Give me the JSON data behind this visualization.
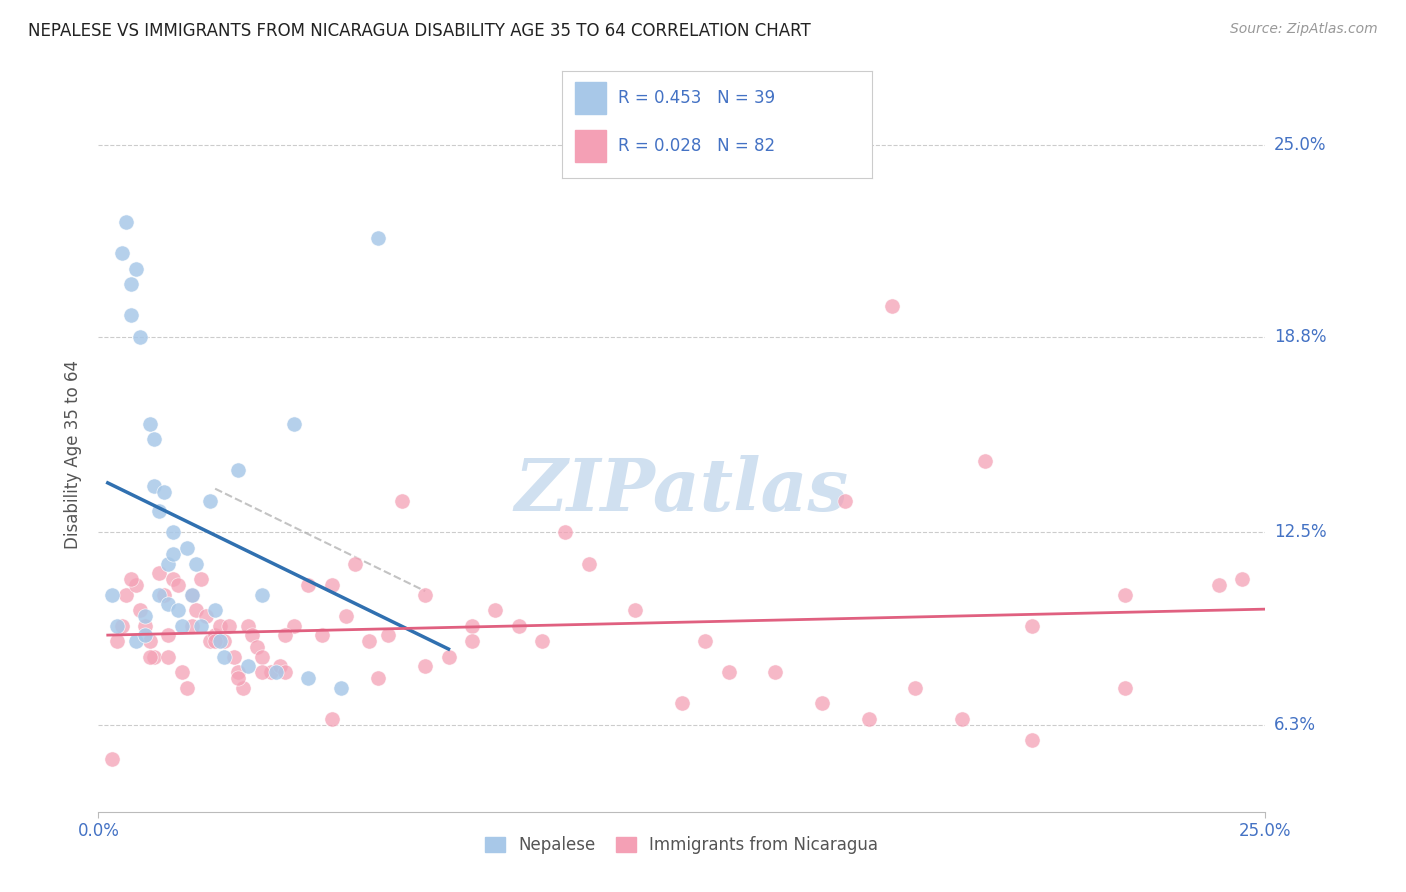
{
  "title": "NEPALESE VS IMMIGRANTS FROM NICARAGUA DISABILITY AGE 35 TO 64 CORRELATION CHART",
  "source": "Source: ZipAtlas.com",
  "ylabel_label": "Disability Age 35 to 64",
  "ylabel_ticks_labels": [
    "6.3%",
    "12.5%",
    "18.8%",
    "25.0%"
  ],
  "ylabel_ticks_vals": [
    6.3,
    12.5,
    18.8,
    25.0
  ],
  "xtick_labels": [
    "0.0%",
    "25.0%"
  ],
  "xtick_vals": [
    0.0,
    25.0
  ],
  "legend_label1": "Nepalese",
  "legend_label2": "Immigrants from Nicaragua",
  "R1": 0.453,
  "N1": 39,
  "R2": 0.028,
  "N2": 82,
  "color_blue": "#a8c8e8",
  "color_pink": "#f4a0b5",
  "color_line_blue": "#3070b0",
  "color_line_pink": "#e06080",
  "color_axis_text": "#4472c4",
  "nepalese_x": [
    0.3,
    0.4,
    0.5,
    0.6,
    0.7,
    0.7,
    0.8,
    0.8,
    0.9,
    1.0,
    1.0,
    1.1,
    1.2,
    1.2,
    1.3,
    1.3,
    1.4,
    1.5,
    1.5,
    1.6,
    1.6,
    1.7,
    1.8,
    1.9,
    2.0,
    2.1,
    2.2,
    2.4,
    2.5,
    2.6,
    2.7,
    3.0,
    3.2,
    3.5,
    3.8,
    4.2,
    4.5,
    5.2,
    6.0
  ],
  "nepalese_y": [
    10.5,
    9.5,
    21.5,
    22.5,
    19.5,
    20.5,
    21.0,
    9.0,
    18.8,
    9.8,
    9.2,
    16.0,
    15.5,
    14.0,
    13.2,
    10.5,
    13.8,
    11.5,
    10.2,
    12.5,
    11.8,
    10.0,
    9.5,
    12.0,
    10.5,
    11.5,
    9.5,
    13.5,
    10.0,
    9.0,
    8.5,
    14.5,
    8.2,
    10.5,
    8.0,
    16.0,
    7.8,
    7.5,
    22.0
  ],
  "nicaragua_x": [
    0.3,
    0.5,
    0.6,
    0.8,
    0.9,
    1.0,
    1.1,
    1.2,
    1.3,
    1.4,
    1.5,
    1.6,
    1.7,
    1.8,
    1.9,
    2.0,
    2.1,
    2.2,
    2.3,
    2.4,
    2.5,
    2.6,
    2.7,
    2.8,
    2.9,
    3.0,
    3.1,
    3.2,
    3.3,
    3.4,
    3.5,
    3.7,
    3.9,
    4.0,
    4.2,
    4.5,
    4.8,
    5.0,
    5.3,
    5.5,
    5.8,
    6.2,
    6.5,
    7.0,
    7.5,
    8.0,
    8.5,
    9.5,
    10.5,
    11.5,
    12.5,
    13.5,
    14.5,
    15.5,
    16.5,
    17.5,
    18.5,
    20.0,
    22.0,
    24.5,
    0.4,
    0.7,
    1.1,
    1.5,
    2.0,
    2.5,
    3.0,
    3.5,
    4.0,
    5.0,
    6.0,
    7.0,
    8.0,
    9.0,
    10.0,
    13.0,
    16.0,
    20.0,
    22.0,
    24.0,
    17.0,
    19.0
  ],
  "nicaragua_y": [
    5.2,
    9.5,
    10.5,
    10.8,
    10.0,
    9.5,
    9.0,
    8.5,
    11.2,
    10.5,
    9.2,
    11.0,
    10.8,
    8.0,
    7.5,
    10.5,
    10.0,
    11.0,
    9.8,
    9.0,
    9.2,
    9.5,
    9.0,
    9.5,
    8.5,
    8.0,
    7.5,
    9.5,
    9.2,
    8.8,
    8.5,
    8.0,
    8.2,
    8.0,
    9.5,
    10.8,
    9.2,
    10.8,
    9.8,
    11.5,
    9.0,
    9.2,
    13.5,
    10.5,
    8.5,
    9.5,
    10.0,
    9.0,
    11.5,
    10.0,
    7.0,
    8.0,
    8.0,
    7.0,
    6.5,
    7.5,
    6.5,
    9.5,
    7.5,
    11.0,
    9.0,
    11.0,
    8.5,
    8.5,
    9.5,
    9.0,
    7.8,
    8.0,
    9.2,
    6.5,
    7.8,
    8.2,
    9.0,
    9.5,
    12.5,
    9.0,
    13.5,
    5.8,
    10.5,
    10.8,
    19.8,
    14.8
  ],
  "xmin": 0.0,
  "xmax": 25.0,
  "ymin": 3.5,
  "ymax": 26.5,
  "watermark": "ZIPatlas",
  "watermark_color": "#d0e0f0"
}
